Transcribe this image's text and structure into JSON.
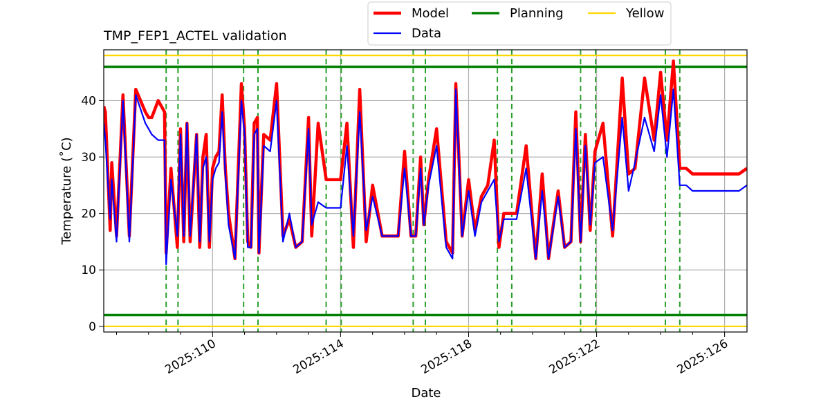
{
  "chart_data": {
    "type": "line",
    "title": "TMP_FEP1_ACTEL validation",
    "xlabel": "Date",
    "ylabel": "Temperature ($^\\circ$C)",
    "ylabel_display": "Temperature (˚C)",
    "xlim": [
      106.6,
      126.7
    ],
    "ylim": [
      -1,
      49
    ],
    "x_ticks": [
      {
        "value": 110,
        "label": "2025:110"
      },
      {
        "value": 114,
        "label": "2025:114"
      },
      {
        "value": 118,
        "label": "2025:118"
      },
      {
        "value": 122,
        "label": "2025:122"
      },
      {
        "value": 126,
        "label": "2025:126"
      }
    ],
    "y_ticks": [
      0,
      10,
      20,
      30,
      40
    ],
    "grid": true,
    "legend_location": "top-center (above plot)",
    "colors": {
      "model": "#ff0000",
      "data": "#0000ff",
      "planning": "#008000",
      "yellow": "#ffd700",
      "vlines": "#2ca02c"
    },
    "legend": [
      {
        "key": "model",
        "name": "Model"
      },
      {
        "key": "data",
        "name": "Data"
      },
      {
        "key": "planning",
        "name": "Planning"
      },
      {
        "key": "yellow",
        "name": "Yellow"
      }
    ],
    "hlines": [
      {
        "kind": "planning",
        "y": 46
      },
      {
        "kind": "planning",
        "y": 2
      },
      {
        "kind": "yellow",
        "y": 48
      },
      {
        "kind": "yellow",
        "y": 0
      }
    ],
    "vlines": [
      108.55,
      108.92,
      110.97,
      111.42,
      113.55,
      114.02,
      116.27,
      116.65,
      118.9,
      119.35,
      121.5,
      121.97,
      124.15,
      124.6
    ],
    "series": [
      {
        "name": "Model",
        "key": "model",
        "x": [
          106.6,
          106.65,
          106.8,
          106.85,
          107.0,
          107.2,
          107.4,
          107.6,
          107.9,
          108.0,
          108.1,
          108.3,
          108.5,
          108.55,
          108.7,
          108.9,
          109.0,
          109.1,
          109.2,
          109.3,
          109.5,
          109.6,
          109.7,
          109.8,
          109.9,
          110.0,
          110.1,
          110.2,
          110.3,
          110.4,
          110.5,
          110.7,
          110.9,
          111.0,
          111.1,
          111.2,
          111.3,
          111.4,
          111.45,
          111.6,
          111.8,
          112.0,
          112.2,
          112.4,
          112.6,
          112.8,
          113.0,
          113.1,
          113.3,
          113.55,
          113.65,
          113.8,
          114.0,
          114.2,
          114.4,
          114.6,
          114.8,
          115.0,
          115.3,
          115.6,
          115.8,
          116.0,
          116.2,
          116.35,
          116.5,
          116.6,
          116.75,
          117.0,
          117.3,
          117.5,
          117.6,
          117.8,
          118.0,
          118.2,
          118.4,
          118.6,
          118.8,
          118.95,
          119.1,
          119.3,
          119.5,
          119.8,
          120.1,
          120.3,
          120.5,
          120.8,
          121.0,
          121.2,
          121.35,
          121.5,
          121.65,
          121.8,
          121.95,
          122.2,
          122.5,
          122.8,
          123.0,
          123.2,
          123.5,
          123.8,
          124.0,
          124.2,
          124.4,
          124.6,
          124.8,
          125.0,
          125.2,
          125.5,
          125.7,
          125.9,
          126.1,
          126.3,
          126.45,
          126.7
        ],
        "y": [
          39,
          38,
          17,
          29,
          16,
          41,
          16,
          42,
          38,
          37,
          37,
          40,
          38,
          13,
          28,
          14,
          35,
          15,
          36,
          15,
          34,
          14,
          30,
          34,
          14,
          28,
          30,
          31,
          41,
          28,
          20,
          12,
          43,
          35,
          15,
          14,
          36,
          37,
          13,
          34,
          33,
          43,
          16,
          19,
          14,
          15,
          37,
          16,
          36,
          26,
          26,
          26,
          26,
          36,
          14,
          42,
          15,
          25,
          16,
          16,
          16,
          31,
          16,
          16,
          30,
          18,
          26,
          35,
          15,
          13,
          43,
          16,
          26,
          17,
          23,
          25,
          33,
          14,
          20,
          20,
          20,
          32,
          12,
          27,
          12,
          24,
          14,
          15,
          38,
          15,
          34,
          17,
          31,
          36,
          16,
          44,
          27,
          28,
          44,
          33,
          45,
          33,
          47,
          28,
          28,
          27,
          27,
          27,
          27,
          27,
          27,
          27,
          27,
          28
        ],
        "note": "approximate"
      },
      {
        "name": "Data",
        "key": "data",
        "x": [
          106.6,
          106.65,
          106.8,
          106.85,
          107.0,
          107.2,
          107.4,
          107.6,
          107.9,
          108.0,
          108.1,
          108.3,
          108.5,
          108.55,
          108.7,
          108.9,
          109.0,
          109.1,
          109.2,
          109.3,
          109.5,
          109.6,
          109.7,
          109.8,
          109.9,
          110.0,
          110.1,
          110.2,
          110.3,
          110.4,
          110.5,
          110.7,
          110.9,
          111.0,
          111.1,
          111.2,
          111.3,
          111.4,
          111.45,
          111.6,
          111.8,
          112.0,
          112.2,
          112.4,
          112.6,
          112.8,
          113.0,
          113.1,
          113.3,
          113.55,
          113.65,
          113.8,
          114.0,
          114.2,
          114.4,
          114.6,
          114.8,
          115.0,
          115.3,
          115.6,
          115.8,
          116.0,
          116.2,
          116.35,
          116.5,
          116.6,
          116.75,
          117.0,
          117.3,
          117.5,
          117.6,
          117.8,
          118.0,
          118.2,
          118.4,
          118.6,
          118.8,
          118.95,
          119.1,
          119.3,
          119.5,
          119.8,
          120.1,
          120.3,
          120.5,
          120.8,
          121.0,
          121.2,
          121.35,
          121.5,
          121.65,
          121.8,
          121.95,
          122.2,
          122.5,
          122.8,
          123.0,
          123.2,
          123.5,
          123.8,
          124.0,
          124.2,
          124.4,
          124.6,
          124.8,
          125.0,
          125.2,
          125.5,
          125.7,
          125.9,
          126.1,
          126.3,
          126.45,
          126.7
        ],
        "y": [
          36,
          33,
          19,
          26,
          15,
          40,
          15,
          41,
          36,
          35,
          34,
          33,
          33,
          11,
          26,
          16,
          34,
          16,
          36,
          16,
          34,
          15,
          28,
          30,
          15,
          26,
          28,
          29,
          38,
          27,
          18,
          12,
          40,
          34,
          14,
          14,
          34,
          35,
          13,
          32,
          31,
          40,
          15,
          20,
          14,
          15,
          35,
          18,
          22,
          21,
          21,
          21,
          21,
          32,
          16,
          38,
          17,
          23,
          16,
          16,
          16,
          28,
          16,
          16,
          28,
          18,
          25,
          32,
          14,
          12,
          42,
          16,
          24,
          16,
          22,
          24,
          26,
          15,
          19,
          19,
          19,
          28,
          12,
          24,
          12,
          23,
          14,
          15,
          35,
          15,
          32,
          18,
          29,
          30,
          17,
          37,
          24,
          29,
          37,
          31,
          41,
          30,
          42,
          25,
          25,
          24,
          24,
          24,
          24,
          24,
          24,
          24,
          24,
          25
        ],
        "note": "approximate"
      }
    ]
  }
}
